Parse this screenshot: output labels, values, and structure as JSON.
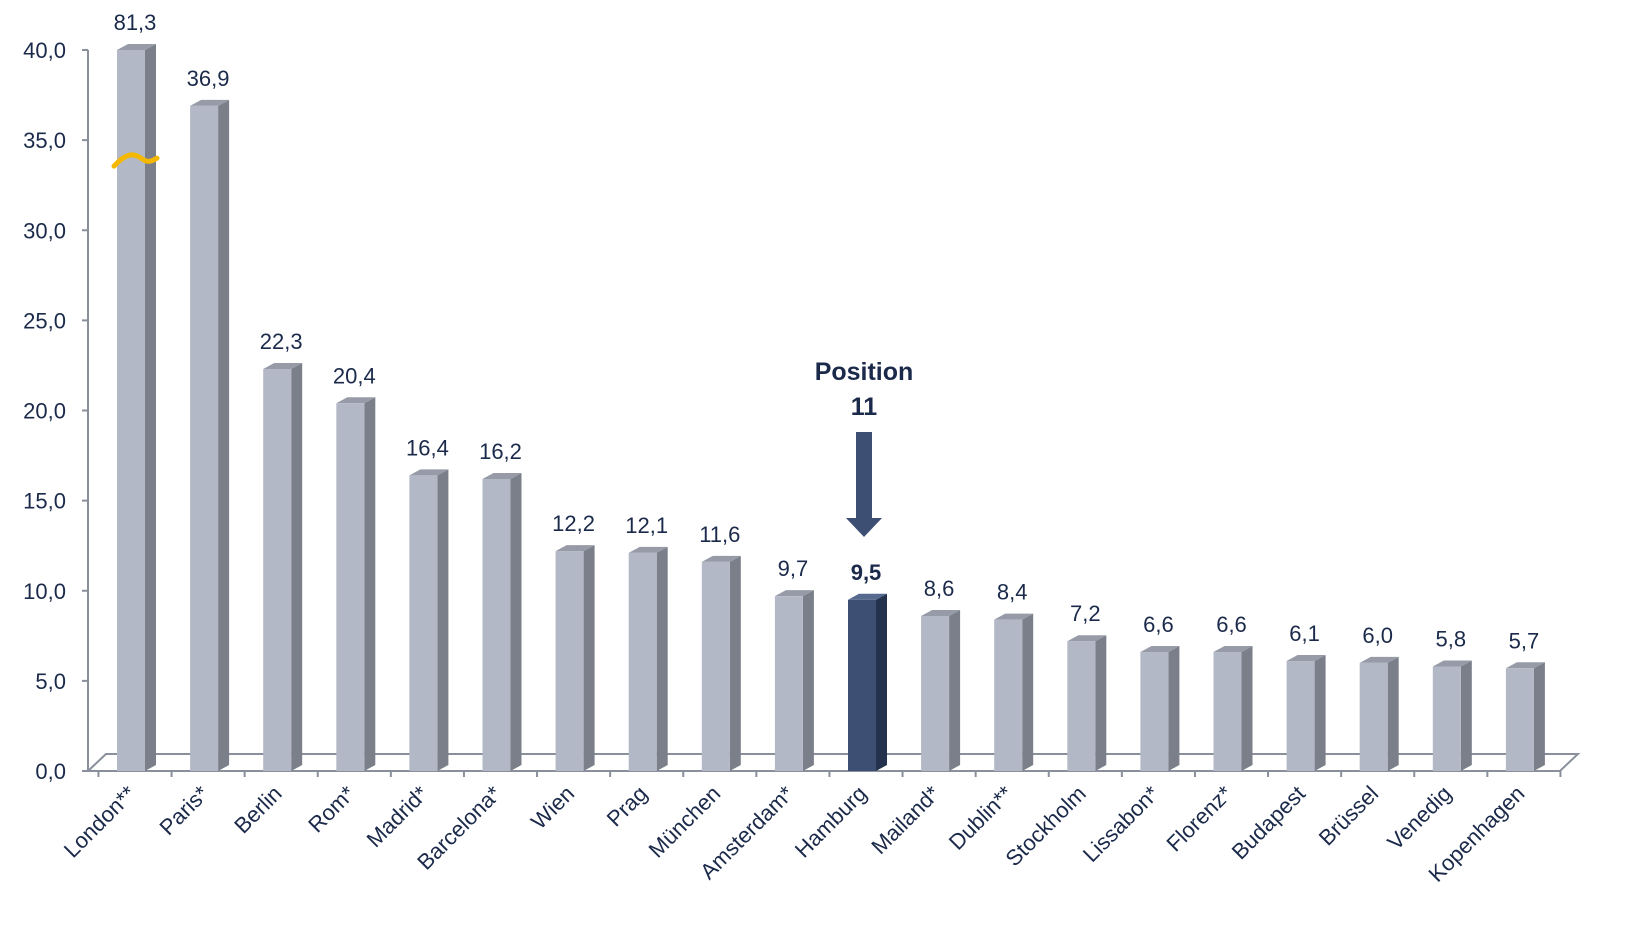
{
  "chart_data": {
    "type": "bar",
    "title": "",
    "xlabel": "",
    "ylabel": "",
    "ylim": [
      0,
      40
    ],
    "yticks": [
      "0,0",
      "5,0",
      "10,0",
      "15,0",
      "20,0",
      "25,0",
      "30,0",
      "35,0",
      "40,0"
    ],
    "grid": false,
    "axis_break": {
      "category": "London**",
      "note": "axis break marker; bar exceeds y-axis range"
    },
    "categories": [
      "London**",
      "Paris*",
      "Berlin",
      "Rom*",
      "Madrid*",
      "Barcelona*",
      "Wien",
      "Prag",
      "München",
      "Amsterdam*",
      "Hamburg",
      "Mailand*",
      "Dublin**",
      "Stockholm",
      "Lissabon*",
      "Florenz*",
      "Budapest",
      "Brüssel",
      "Venedig",
      "Kopenhagen"
    ],
    "values": [
      81.3,
      36.9,
      22.3,
      20.4,
      16.4,
      16.2,
      12.2,
      12.1,
      11.6,
      9.7,
      9.5,
      8.6,
      8.4,
      7.2,
      6.6,
      6.6,
      6.1,
      6.0,
      5.8,
      5.7
    ],
    "value_labels": [
      "81,3",
      "36,9",
      "22,3",
      "20,4",
      "16,4",
      "16,2",
      "12,2",
      "12,1",
      "11,6",
      "9,7",
      "9,5",
      "8,6",
      "8,4",
      "7,2",
      "6,6",
      "6,6",
      "6,1",
      "6,0",
      "5,8",
      "5,7"
    ],
    "highlight_category": "Hamburg",
    "annotation": {
      "line1": "Position",
      "line2": "11"
    },
    "colors": {
      "bar_front": "#b3b8c6",
      "bar_side": "#7a7f8a",
      "bar_top": "#969ba7",
      "highlight_front": "#3d5073",
      "highlight_side": "#24324e",
      "highlight_top": "#56698f",
      "arrow": "#3d5073",
      "axis_break": "#f5b800",
      "text": "#1b2a4a",
      "axis": "#8a8f9c"
    }
  }
}
